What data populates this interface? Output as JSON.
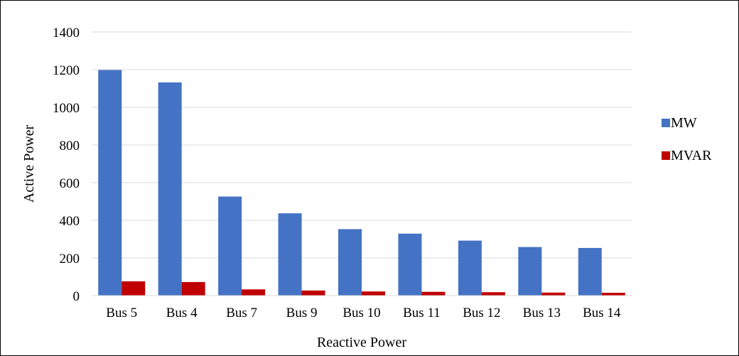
{
  "chart_data": {
    "type": "bar",
    "categories": [
      "Bus 5",
      "Bus 4",
      "Bus 7",
      "Bus 9",
      "Bus 10",
      "Bus 11",
      "Bus 12",
      "Bus 13",
      "Bus 14"
    ],
    "series": [
      {
        "name": "MW",
        "color": "#4472C4",
        "values": [
          1198,
          1132,
          526,
          437,
          353,
          329,
          292,
          258,
          253
        ]
      },
      {
        "name": "MVAR",
        "color": "#C00000",
        "values": [
          76,
          72,
          33,
          27,
          22,
          20,
          18,
          16,
          15
        ]
      }
    ],
    "title": "",
    "xlabel": "Reactive Power",
    "ylabel": "Active Power",
    "ylim": [
      0,
      1400
    ],
    "yticks": [
      0,
      200,
      400,
      600,
      800,
      1000,
      1200,
      1400
    ],
    "grid": true,
    "legend_position": "right"
  }
}
